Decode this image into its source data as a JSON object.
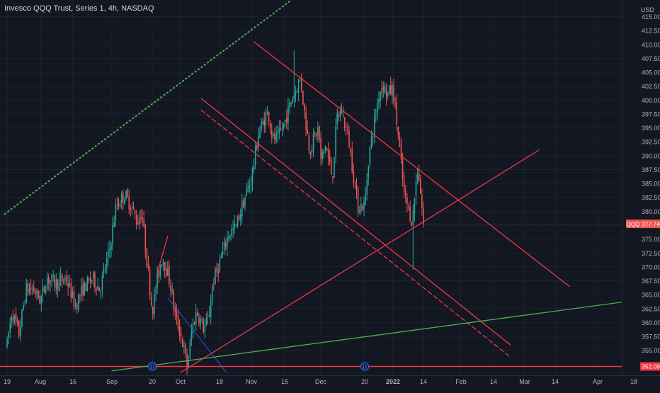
{
  "header": {
    "title": "Invesco QQQ Trust, Series 1, 4h, NASDAQ",
    "currency": "USD"
  },
  "colors": {
    "background": "#131722",
    "grid": "#1e222d",
    "up": "#26a69a",
    "down": "#ef5350",
    "drawing_red": "#f23645",
    "drawing_green": "#4caf50",
    "drawing_blue": "#2962ff",
    "dotted_green": "#4caf50"
  },
  "chart_data": {
    "type": "candlestick",
    "symbol": "QQQ",
    "interval": "4h",
    "grid": true,
    "y_axis": {
      "position": "right",
      "range": [
        350.5,
        418
      ],
      "ticks": [
        415.0,
        412.5,
        410.0,
        407.5,
        405.0,
        402.5,
        400.0,
        397.5,
        395.0,
        392.5,
        390.0,
        387.5,
        385.0,
        382.5,
        380.0,
        377.5,
        375.0,
        372.5,
        370.0,
        367.5,
        365.0,
        362.5,
        360.0,
        357.5,
        355.0
      ]
    },
    "x_axis": {
      "ticks": [
        "19",
        "Aug",
        "16",
        "Sep",
        "20",
        "Oct",
        "18",
        "Nov",
        "15",
        "Dec",
        "20",
        "2022",
        "14",
        "Feb",
        "14",
        "Mar",
        "14",
        "Apr",
        "18"
      ],
      "tick_dates": [
        "2021-07-19",
        "2021-08-02",
        "2021-08-16",
        "2021-09-01",
        "2021-09-20",
        "2021-10-01",
        "2021-10-18",
        "2021-11-01",
        "2021-11-15",
        "2021-12-01",
        "2021-12-20",
        "2022-01-03",
        "2022-01-14",
        "2022-02-01",
        "2022-02-14",
        "2022-03-01",
        "2022-03-14",
        "2022-04-01",
        "2022-04-18"
      ],
      "range": [
        "2021-07-18",
        "2022-04-21"
      ]
    },
    "price_path": [
      [
        "2021-07-19",
        356
      ],
      [
        "2021-07-21",
        362
      ],
      [
        "2021-07-24",
        358
      ],
      [
        "2021-07-27",
        366
      ],
      [
        "2021-07-30",
        366
      ],
      [
        "2021-08-02",
        364
      ],
      [
        "2021-08-05",
        368
      ],
      [
        "2021-08-09",
        367
      ],
      [
        "2021-08-13",
        368
      ],
      [
        "2021-08-17",
        363
      ],
      [
        "2021-08-20",
        366
      ],
      [
        "2021-08-24",
        368
      ],
      [
        "2021-08-27",
        366
      ],
      [
        "2021-08-31",
        373
      ],
      [
        "2021-09-03",
        381
      ],
      [
        "2021-09-07",
        383
      ],
      [
        "2021-09-10",
        381
      ],
      [
        "2021-09-13",
        378
      ],
      [
        "2021-09-15",
        380
      ],
      [
        "2021-09-17",
        373
      ],
      [
        "2021-09-20",
        362
      ],
      [
        "2021-09-22",
        368
      ],
      [
        "2021-09-24",
        372
      ],
      [
        "2021-09-27",
        367
      ],
      [
        "2021-09-29",
        361
      ],
      [
        "2021-10-01",
        358
      ],
      [
        "2021-10-04",
        352
      ],
      [
        "2021-10-06",
        359
      ],
      [
        "2021-10-08",
        362
      ],
      [
        "2021-10-11",
        359
      ],
      [
        "2021-10-13",
        360
      ],
      [
        "2021-10-15",
        367
      ],
      [
        "2021-10-19",
        372
      ],
      [
        "2021-10-22",
        376
      ],
      [
        "2021-10-25",
        377
      ],
      [
        "2021-10-28",
        381
      ],
      [
        "2021-11-01",
        386
      ],
      [
        "2021-11-04",
        394
      ],
      [
        "2021-11-08",
        398
      ],
      [
        "2021-11-10",
        393
      ],
      [
        "2021-11-12",
        393
      ],
      [
        "2021-11-15",
        396
      ],
      [
        "2021-11-18",
        400
      ],
      [
        "2021-11-22",
        404
      ],
      [
        "2021-11-24",
        397
      ],
      [
        "2021-11-26",
        391
      ],
      [
        "2021-11-30",
        395
      ],
      [
        "2021-12-01",
        389
      ],
      [
        "2021-12-03",
        392
      ],
      [
        "2021-12-06",
        386
      ],
      [
        "2021-12-08",
        397
      ],
      [
        "2021-12-10",
        398
      ],
      [
        "2021-12-13",
        393
      ],
      [
        "2021-12-15",
        387
      ],
      [
        "2021-12-17",
        381
      ],
      [
        "2021-12-20",
        381
      ],
      [
        "2021-12-22",
        390
      ],
      [
        "2021-12-27",
        401
      ],
      [
        "2021-12-29",
        403
      ],
      [
        "2021-12-31",
        401
      ],
      [
        "2022-01-03",
        402
      ],
      [
        "2022-01-05",
        393
      ],
      [
        "2022-01-07",
        383
      ],
      [
        "2022-01-10",
        378
      ],
      [
        "2022-01-11",
        384
      ],
      [
        "2022-01-12",
        388
      ],
      [
        "2022-01-13",
        383
      ],
      [
        "2022-01-14",
        377.74
      ]
    ],
    "wick_extremes": [
      {
        "date": "2021-10-04",
        "low": 350.5
      },
      {
        "date": "2021-11-19",
        "high": 409
      },
      {
        "date": "2022-01-10",
        "low": 369.5
      }
    ],
    "last_price": {
      "label": "QQQ",
      "value": 377.74
    },
    "horizontal_line": {
      "value": 352.09
    },
    "drawings": [
      {
        "id": "channel-upper",
        "style": "solid",
        "color": "red",
        "from": [
          "2021-11-02",
          410.5
        ],
        "to": [
          "2022-03-20",
          366.5
        ]
      },
      {
        "id": "channel-lower",
        "style": "solid",
        "color": "red",
        "from": [
          "2021-10-10",
          400.3
        ],
        "to": [
          "2022-02-22",
          356.0
        ]
      },
      {
        "id": "channel-lower-dashed",
        "style": "dashed",
        "color": "red",
        "from": [
          "2021-10-10",
          398.2
        ],
        "to": [
          "2022-02-22",
          353.8
        ]
      },
      {
        "id": "rising-red",
        "style": "solid",
        "color": "red",
        "from": [
          "2021-10-01",
          351.0
        ],
        "to": [
          "2022-03-07",
          391.0
        ]
      },
      {
        "id": "rising-green",
        "style": "solid",
        "color": "green",
        "from": [
          "2021-09-01",
          351.3
        ],
        "to": [
          "2022-04-21",
          364.1
        ]
      },
      {
        "id": "dotted-green",
        "style": "dotted",
        "color": "green",
        "from": [
          "2021-07-18",
          379.5
        ],
        "to": [
          "2021-11-18",
          418.0
        ]
      },
      {
        "id": "small-red",
        "style": "solid",
        "color": "red",
        "from": [
          "2021-09-22",
          369.0
        ],
        "to": [
          "2021-09-26",
          375.5
        ]
      },
      {
        "id": "blue-diagonal",
        "style": "solid",
        "color": "blue",
        "from": [
          "2021-09-26",
          364.5
        ],
        "to": [
          "2021-10-21",
          351.0
        ]
      }
    ],
    "event_markers": [
      {
        "label": "D",
        "date": "2021-09-20"
      },
      {
        "label": "D",
        "date": "2021-12-20"
      }
    ]
  }
}
